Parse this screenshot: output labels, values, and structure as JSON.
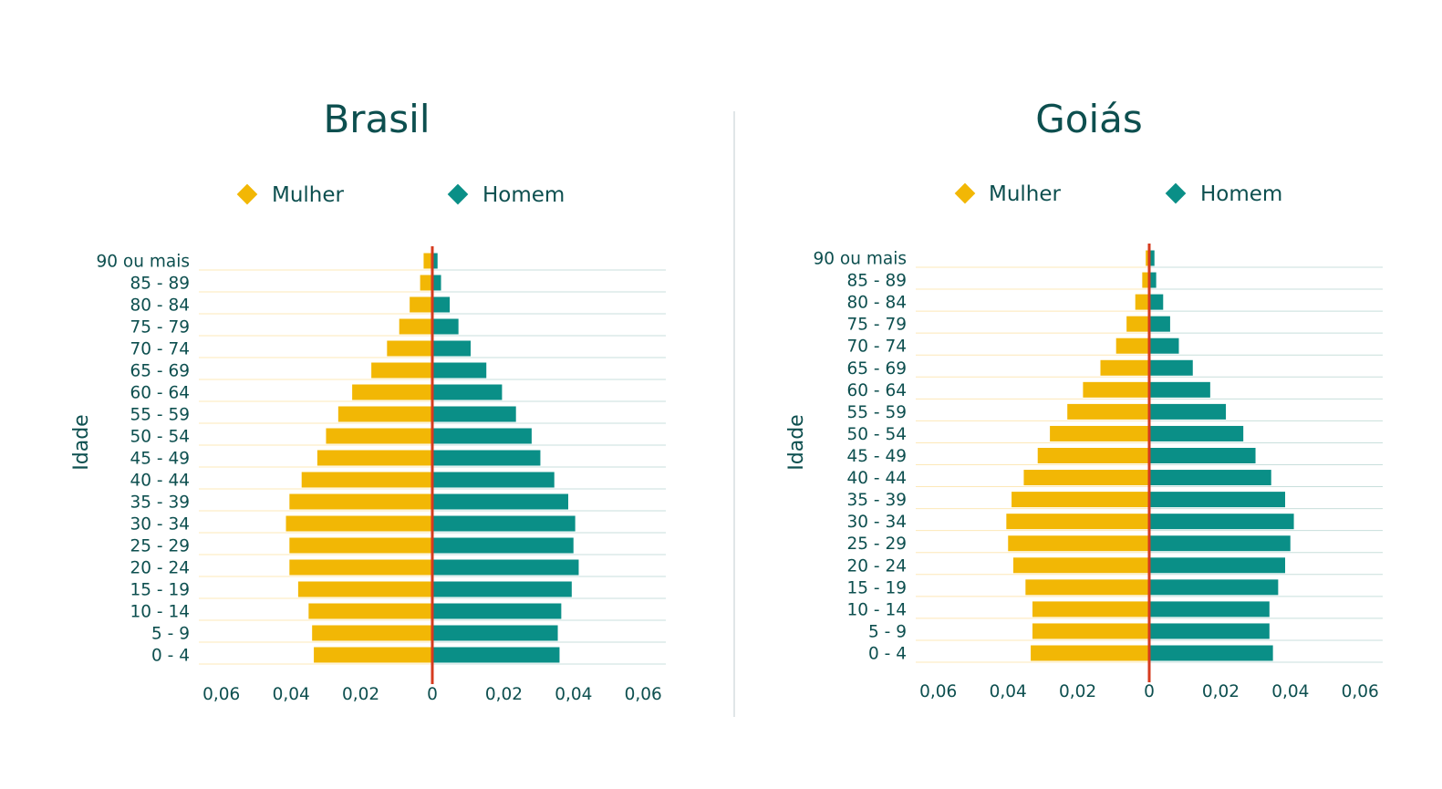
{
  "legend": {
    "female": "Mulher",
    "male": "Homem"
  },
  "colors": {
    "female": "#f2b705",
    "male": "#0a8f87",
    "center_line": "#d63b1f",
    "text": "#0d4f4f",
    "grid_female": "#fde8b8",
    "grid_male": "#c8dfdc",
    "divider": "#d6dee0"
  },
  "y_axis_label": "Idade",
  "categories": [
    "0 - 4",
    "5 - 9",
    "10 - 14",
    "15 - 19",
    "20 - 24",
    "25 - 29",
    "30 - 34",
    "35 - 39",
    "40 - 44",
    "45 - 49",
    "50 - 54",
    "55 - 59",
    "60 - 64",
    "65 - 69",
    "70 - 74",
    "75 - 79",
    "80 - 84",
    "85 - 89",
    "90 ou mais"
  ],
  "tick_labels": [
    "0,06",
    "0,04",
    "0,02",
    "0",
    "0,02",
    "0,04",
    "0,06"
  ],
  "chart_data": [
    {
      "type": "bar",
      "title": "Brasil",
      "orientation": "horizontal-pyramid",
      "xlim": [
        -0.067,
        0.067
      ],
      "categories": [
        "0 - 4",
        "5 - 9",
        "10 - 14",
        "15 - 19",
        "20 - 24",
        "25 - 29",
        "30 - 34",
        "35 - 39",
        "40 - 44",
        "45 - 49",
        "50 - 54",
        "55 - 59",
        "60 - 64",
        "65 - 69",
        "70 - 74",
        "75 - 79",
        "80 - 84",
        "85 - 89",
        "90 ou mais"
      ],
      "series": [
        {
          "name": "Mulher",
          "values": [
            0.034,
            0.0345,
            0.0355,
            0.0385,
            0.041,
            0.041,
            0.042,
            0.041,
            0.0375,
            0.033,
            0.0305,
            0.027,
            0.023,
            0.0175,
            0.013,
            0.0095,
            0.0065,
            0.0035,
            0.0025
          ]
        },
        {
          "name": "Homem",
          "values": [
            0.0365,
            0.036,
            0.037,
            0.04,
            0.042,
            0.0405,
            0.041,
            0.039,
            0.035,
            0.031,
            0.0285,
            0.024,
            0.02,
            0.0155,
            0.011,
            0.0075,
            0.005,
            0.0025,
            0.0015
          ]
        }
      ]
    },
    {
      "type": "bar",
      "title": "Goiás",
      "orientation": "horizontal-pyramid",
      "xlim": [
        -0.067,
        0.067
      ],
      "categories": [
        "0 - 4",
        "5 - 9",
        "10 - 14",
        "15 - 19",
        "20 - 24",
        "25 - 29",
        "30 - 34",
        "35 - 39",
        "40 - 44",
        "45 - 49",
        "50 - 54",
        "55 - 59",
        "60 - 64",
        "65 - 69",
        "70 - 74",
        "75 - 79",
        "80 - 84",
        "85 - 89",
        "90 ou mais"
      ],
      "series": [
        {
          "name": "Mulher",
          "values": [
            0.034,
            0.0335,
            0.0335,
            0.0355,
            0.039,
            0.0405,
            0.041,
            0.0395,
            0.036,
            0.032,
            0.0285,
            0.0235,
            0.019,
            0.014,
            0.0095,
            0.0065,
            0.004,
            0.002,
            0.001
          ]
        },
        {
          "name": "Homem",
          "values": [
            0.0355,
            0.0345,
            0.0345,
            0.037,
            0.039,
            0.0405,
            0.0415,
            0.039,
            0.035,
            0.0305,
            0.027,
            0.022,
            0.0175,
            0.0125,
            0.0085,
            0.006,
            0.004,
            0.002,
            0.0015
          ]
        }
      ]
    }
  ]
}
